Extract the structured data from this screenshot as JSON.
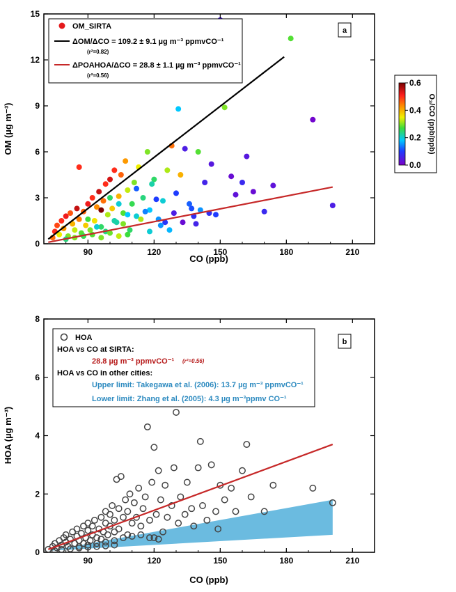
{
  "chart_data": [
    {
      "panel": "a",
      "type": "scatter",
      "xlabel": "CO (ppb)",
      "ylabel": "OM (µg m⁻³)",
      "xlim": [
        70,
        220
      ],
      "ylim": [
        0,
        15
      ],
      "xticks": [
        90,
        120,
        150,
        180,
        210
      ],
      "yticks": [
        0,
        3,
        6,
        9,
        12,
        15
      ],
      "legend": {
        "marker_label": "OM_SIRTA",
        "line1": "ΔOM/ΔCO = 109.2 ± 9.1 µg m⁻³ ppmvCO⁻¹",
        "line1_r2": "(r²=0.82)",
        "line2": "ΔPOAHOA/ΔCO = 28.8 ± 1.1 µg m⁻³ ppmvCO⁻¹",
        "line2_r2": "(r²=0.56)"
      },
      "colorbar": {
        "label": "O₃/CO (ppb/ppb)",
        "range": [
          0,
          0.6
        ],
        "ticks": [
          "0.0",
          "0.2",
          "0.4",
          "0.6"
        ]
      },
      "fit_lines": [
        {
          "name": "ΔOM/ΔCO",
          "color": "#000000",
          "x": [
            72,
            179
          ],
          "y": [
            0.3,
            12.2
          ]
        },
        {
          "name": "ΔPOA_HOA/ΔCO",
          "color": "#c62828",
          "x": [
            72,
            201
          ],
          "y": [
            0.1,
            3.7
          ]
        }
      ],
      "points": [
        [
          74,
          0.4,
          0.45
        ],
        [
          75,
          0.8,
          0.5
        ],
        [
          76,
          1.2,
          0.48
        ],
        [
          77,
          0.6,
          0.35
        ],
        [
          78,
          1.5,
          0.5
        ],
        [
          79,
          1.0,
          0.42
        ],
        [
          80,
          1.8,
          0.52
        ],
        [
          81,
          0.5,
          0.3
        ],
        [
          82,
          2.0,
          0.47
        ],
        [
          83,
          1.3,
          0.4
        ],
        [
          84,
          0.9,
          0.33
        ],
        [
          85,
          2.3,
          0.55
        ],
        [
          86,
          1.6,
          0.44
        ],
        [
          86,
          5.0,
          0.5
        ],
        [
          87,
          0.7,
          0.28
        ],
        [
          88,
          2.1,
          0.46
        ],
        [
          89,
          1.2,
          0.38
        ],
        [
          90,
          2.6,
          0.52
        ],
        [
          91,
          0.9,
          0.3
        ],
        [
          92,
          3.0,
          0.5
        ],
        [
          93,
          1.5,
          0.36
        ],
        [
          94,
          2.4,
          0.43
        ],
        [
          95,
          3.4,
          0.55
        ],
        [
          96,
          1.1,
          0.25
        ],
        [
          97,
          2.8,
          0.45
        ],
        [
          98,
          3.9,
          0.5
        ],
        [
          99,
          1.9,
          0.32
        ],
        [
          100,
          4.2,
          0.54
        ],
        [
          101,
          2.3,
          0.38
        ],
        [
          102,
          4.8,
          0.5
        ],
        [
          103,
          1.4,
          0.22
        ],
        [
          104,
          3.1,
          0.4
        ],
        [
          105,
          4.5,
          0.46
        ],
        [
          106,
          2.0,
          0.28
        ],
        [
          107,
          5.4,
          0.42
        ],
        [
          108,
          3.5,
          0.33
        ],
        [
          110,
          2.6,
          0.26
        ],
        [
          111,
          4.0,
          0.3
        ],
        [
          112,
          1.8,
          0.2
        ],
        [
          113,
          5.0,
          0.35
        ],
        [
          115,
          3.0,
          0.24
        ],
        [
          117,
          6.0,
          0.3
        ],
        [
          118,
          2.2,
          0.18
        ],
        [
          120,
          4.2,
          0.25
        ],
        [
          122,
          1.6,
          0.15
        ],
        [
          124,
          2.8,
          0.2
        ],
        [
          126,
          4.8,
          0.32
        ],
        [
          128,
          6.4,
          0.45
        ],
        [
          130,
          3.3,
          0.1
        ],
        [
          131,
          8.8,
          0.18
        ],
        [
          132,
          4.5,
          0.4
        ],
        [
          134,
          6.2,
          0.05
        ],
        [
          136,
          2.6,
          0.12
        ],
        [
          138,
          1.8,
          0.08
        ],
        [
          140,
          6.0,
          0.28
        ],
        [
          141,
          2.2,
          0.15
        ],
        [
          143,
          4.0,
          0.06
        ],
        [
          146,
          5.2,
          0.04
        ],
        [
          148,
          1.9,
          0.1
        ],
        [
          150,
          14.6,
          0.05
        ],
        [
          152,
          8.9,
          0.3
        ],
        [
          155,
          4.4,
          0.02
        ],
        [
          157,
          3.2,
          0.03
        ],
        [
          160,
          4.0,
          0.07
        ],
        [
          162,
          5.7,
          0.04
        ],
        [
          165,
          3.4,
          0.02
        ],
        [
          170,
          2.1,
          0.07
        ],
        [
          174,
          3.8,
          0.03
        ],
        [
          182,
          13.4,
          0.28
        ],
        [
          192,
          8.1,
          0.01
        ],
        [
          201,
          2.5,
          0.05
        ],
        [
          96,
          2.2,
          0.6
        ],
        [
          100,
          3.0,
          0.25
        ],
        [
          104,
          2.6,
          0.2
        ],
        [
          108,
          1.9,
          0.18
        ],
        [
          112,
          3.6,
          0.12
        ],
        [
          116,
          2.1,
          0.14
        ],
        [
          119,
          3.9,
          0.22
        ],
        [
          121,
          2.9,
          0.1
        ],
        [
          125,
          1.4,
          0.09
        ],
        [
          129,
          2.0,
          0.05
        ],
        [
          133,
          1.4,
          0.02
        ],
        [
          137,
          2.3,
          0.11
        ],
        [
          139,
          1.3,
          0.06
        ],
        [
          145,
          2.0,
          0.08
        ],
        [
          90,
          1.6,
          0.27
        ],
        [
          94,
          1.1,
          0.2
        ],
        [
          98,
          0.8,
          0.24
        ],
        [
          102,
          1.5,
          0.22
        ],
        [
          106,
          1.3,
          0.3
        ],
        [
          109,
          0.9,
          0.25
        ],
        [
          114,
          1.6,
          0.32
        ],
        [
          118,
          0.8,
          0.2
        ],
        [
          123,
          1.2,
          0.15
        ],
        [
          127,
          0.9,
          0.17
        ],
        [
          80,
          0.3,
          0.24
        ],
        [
          84,
          0.4,
          0.3
        ],
        [
          88,
          0.5,
          0.26
        ],
        [
          92,
          0.6,
          0.28
        ],
        [
          96,
          0.4,
          0.3
        ],
        [
          100,
          0.7,
          0.29
        ],
        [
          104,
          0.5,
          0.33
        ],
        [
          108,
          0.6,
          0.27
        ]
      ]
    },
    {
      "panel": "b",
      "type": "scatter",
      "xlabel": "CO (ppb)",
      "ylabel": "HOA (µg m⁻³)",
      "xlim": [
        70,
        220
      ],
      "ylim": [
        0,
        8
      ],
      "xticks": [
        90,
        120,
        150,
        180,
        210
      ],
      "yticks": [
        0,
        2,
        4,
        6,
        8
      ],
      "legend": {
        "marker_label": "HOA",
        "sirta_heading": "HOA vs CO at SIRTA:",
        "sirta_value": "28.8 µg m⁻³ ppmvCO⁻¹",
        "sirta_r2": "(r²=0.56)",
        "other_heading": "HOA vs CO in other cities:",
        "upper": "Upper limit: Takegawa et al. (2006): 13.7 µg m⁻³ ppmvCO⁻¹",
        "lower": "Lower limit: Zhang et al. (2005): 4.3 µg m⁻³ppmv CO⁻¹"
      },
      "fit_line": {
        "color": "#c62828",
        "x": [
          72,
          201
        ],
        "y": [
          0.1,
          3.7
        ]
      },
      "shaded_band": {
        "color": "#6bbbe0",
        "x": [
          72,
          201
        ],
        "upper": [
          0.05,
          1.8
        ],
        "lower": [
          0.05,
          0.6
        ]
      },
      "points": [
        [
          72,
          0.1
        ],
        [
          74,
          0.2
        ],
        [
          75,
          0.3
        ],
        [
          76,
          0.15
        ],
        [
          77,
          0.4
        ],
        [
          78,
          0.25
        ],
        [
          79,
          0.5
        ],
        [
          80,
          0.35
        ],
        [
          80,
          0.6
        ],
        [
          81,
          0.2
        ],
        [
          82,
          0.45
        ],
        [
          83,
          0.7
        ],
        [
          84,
          0.3
        ],
        [
          85,
          0.55
        ],
        [
          85,
          0.8
        ],
        [
          86,
          0.4
        ],
        [
          87,
          0.65
        ],
        [
          88,
          0.9
        ],
        [
          88,
          0.3
        ],
        [
          89,
          0.5
        ],
        [
          90,
          0.75
        ],
        [
          90,
          1.0
        ],
        [
          91,
          0.4
        ],
        [
          92,
          0.6
        ],
        [
          92,
          0.9
        ],
        [
          93,
          1.1
        ],
        [
          94,
          0.5
        ],
        [
          95,
          0.8
        ],
        [
          96,
          1.2
        ],
        [
          96,
          0.45
        ],
        [
          97,
          0.7
        ],
        [
          98,
          1.0
        ],
        [
          98,
          1.4
        ],
        [
          99,
          0.6
        ],
        [
          100,
          0.9
        ],
        [
          100,
          1.3
        ],
        [
          101,
          1.6
        ],
        [
          102,
          0.7
        ],
        [
          102,
          1.1
        ],
        [
          103,
          2.5
        ],
        [
          104,
          1.5
        ],
        [
          104,
          0.8
        ],
        [
          105,
          2.6
        ],
        [
          106,
          1.2
        ],
        [
          107,
          1.8
        ],
        [
          108,
          0.6
        ],
        [
          108,
          1.4
        ],
        [
          109,
          2.0
        ],
        [
          110,
          1.0
        ],
        [
          111,
          1.7
        ],
        [
          112,
          1.2
        ],
        [
          113,
          2.2
        ],
        [
          114,
          0.9
        ],
        [
          115,
          1.5
        ],
        [
          116,
          1.9
        ],
        [
          117,
          4.3
        ],
        [
          118,
          1.1
        ],
        [
          119,
          2.4
        ],
        [
          120,
          0.5
        ],
        [
          120,
          3.6
        ],
        [
          121,
          1.3
        ],
        [
          122,
          2.8
        ],
        [
          123,
          1.8
        ],
        [
          124,
          0.7
        ],
        [
          125,
          2.3
        ],
        [
          126,
          1.2
        ],
        [
          128,
          1.6
        ],
        [
          129,
          2.9
        ],
        [
          130,
          4.8
        ],
        [
          131,
          1.0
        ],
        [
          132,
          1.9
        ],
        [
          134,
          1.3
        ],
        [
          135,
          2.4
        ],
        [
          137,
          1.5
        ],
        [
          138,
          0.9
        ],
        [
          140,
          2.9
        ],
        [
          141,
          3.8
        ],
        [
          142,
          1.6
        ],
        [
          144,
          1.1
        ],
        [
          146,
          3.0
        ],
        [
          148,
          1.4
        ],
        [
          149,
          0.8
        ],
        [
          150,
          2.3
        ],
        [
          152,
          1.8
        ],
        [
          155,
          2.2
        ],
        [
          157,
          1.4
        ],
        [
          160,
          2.8
        ],
        [
          162,
          3.7
        ],
        [
          164,
          1.9
        ],
        [
          170,
          1.4
        ],
        [
          174,
          2.3
        ],
        [
          192,
          2.2
        ],
        [
          201,
          1.7
        ],
        [
          86,
          0.2
        ],
        [
          90,
          0.25
        ],
        [
          94,
          0.3
        ],
        [
          98,
          0.35
        ],
        [
          102,
          0.4
        ],
        [
          106,
          0.5
        ],
        [
          110,
          0.55
        ],
        [
          114,
          0.6
        ],
        [
          118,
          0.5
        ],
        [
          122,
          0.45
        ],
        [
          75,
          0.05
        ],
        [
          78,
          0.1
        ],
        [
          82,
          0.12
        ],
        [
          86,
          0.15
        ],
        [
          90,
          0.18
        ],
        [
          94,
          0.2
        ],
        [
          98,
          0.22
        ],
        [
          102,
          0.25
        ]
      ]
    }
  ],
  "panel_labels": [
    "a",
    "b"
  ]
}
